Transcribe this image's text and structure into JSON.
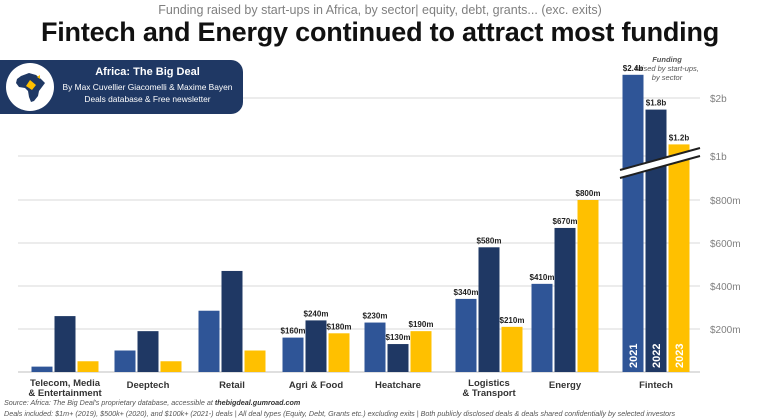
{
  "header": {
    "subtitle": "Funding raised by start-ups in Africa, by sector| equity, debt, grants... (exc. exits)",
    "title": "Fintech and Energy continued to attract most funding"
  },
  "brand": {
    "name": "Africa: The Big Deal",
    "authors": "By Max Cuvellier Giacomelli & Maxime Bayen",
    "tagline": "Deals database & Free newsletter",
    "logo_icon": "africa-map-icon"
  },
  "footer": {
    "source_prefix": "Source: Africa: The Big Deal's proprietary database, accessible at ",
    "source_link": "thebigdeal.gumroad.com",
    "deals_note": "Deals included: $1m+ (2019), $500k+ (2020), and $100k+ (2021-) deals | All deal types (Equity, Debt, Grants etc.) excluding exits | Both publicly disclosed deals & deals shared confidentially by selected investors"
  },
  "chart_data": {
    "type": "bar",
    "title": "Fintech and Energy continued to attract most funding",
    "subtitle": "Funding raised by start-ups in Africa, by sector| equity, debt, grants... (exc. exits)",
    "axis_note": "Funding raised by start-ups, by sector",
    "categories": [
      "Telecom, Media & Entertainment",
      "Deeptech",
      "Retail",
      "Agri & Food",
      "Heatchare",
      "Logistics & Transport",
      "Energy",
      "Fintech"
    ],
    "series": [
      {
        "name": "2021",
        "color": "#2f5597",
        "values": [
          25,
          100,
          285,
          160,
          230,
          340,
          410,
          2400
        ],
        "labels": [
          "",
          "",
          "",
          "$160m",
          "$230m",
          "$340m",
          "$410m",
          "$2.4b"
        ]
      },
      {
        "name": "2022",
        "color": "#1f3864",
        "values": [
          260,
          190,
          470,
          240,
          130,
          580,
          670,
          1800
        ],
        "labels": [
          "",
          "",
          "",
          "$240m",
          "$130m",
          "$580m",
          "$670m",
          "$1.8b"
        ]
      },
      {
        "name": "2023",
        "color": "#ffc000",
        "values": [
          50,
          50,
          100,
          180,
          190,
          210,
          800,
          1200
        ],
        "labels": [
          "",
          "",
          "",
          "$180m",
          "$190m",
          "$210m",
          "$800m",
          "$1.2b"
        ]
      }
    ],
    "y_axis": {
      "position": "right",
      "ticks": [
        "$200m",
        "$400m",
        "$600m",
        "$800m",
        "$1b",
        "$2b"
      ],
      "break_between": [
        "$800m",
        "$1b"
      ],
      "ylim": [
        0,
        2500
      ]
    },
    "grid": true,
    "legend": "inside-fintech-bars",
    "colors": {
      "2021": "#2f5597",
      "2022": "#1f3864",
      "2023": "#ffc000",
      "grid": "#d9d9d9",
      "brand": "#1f3864"
    }
  }
}
